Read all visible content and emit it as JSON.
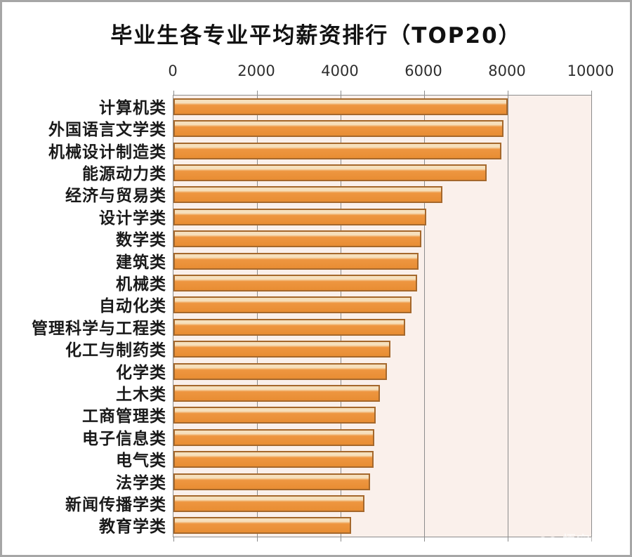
{
  "chart_data": {
    "type": "bar",
    "orientation": "horizontal",
    "title": "毕业生各专业平均薪资排行（TOP20）",
    "xlabel": "",
    "ylabel": "",
    "x_ticks": [
      0,
      2000,
      4000,
      6000,
      8000,
      10000
    ],
    "xlim": [
      0,
      10000
    ],
    "grid": "vertical",
    "legend": "none",
    "categories": [
      "计算机类",
      "外国语言文学类",
      "机械设计制造类",
      "能源动力类",
      "经济与贸易类",
      "设计学类",
      "数学类",
      "建筑类",
      "机械类",
      "自动化类",
      "管理科学与工程类",
      "化工与制药类",
      "化学类",
      "土木类",
      "工商管理类",
      "电子信息类",
      "电气类",
      "法学类",
      "新闻传播学类",
      "教育学类"
    ],
    "values": [
      8000,
      7900,
      7850,
      7500,
      6430,
      6050,
      5930,
      5860,
      5840,
      5690,
      5540,
      5190,
      5110,
      4940,
      4840,
      4800,
      4790,
      4700,
      4570,
      4250
    ],
    "colors": {
      "bar_fill": "#ee9640",
      "bar_fill_dark": "#e88d33",
      "bar_highlight": "#f6e0bd",
      "bar_border": "#a5682c",
      "plot_background": "#faf0eb",
      "axis_line": "#8c8c8c",
      "title_text": "#111111",
      "category_text": "#1a1a1a",
      "tick_text": "#2e2e2e"
    }
  },
  "watermark": {
    "text": "悟空问答",
    "icon": "glasses-icon"
  }
}
